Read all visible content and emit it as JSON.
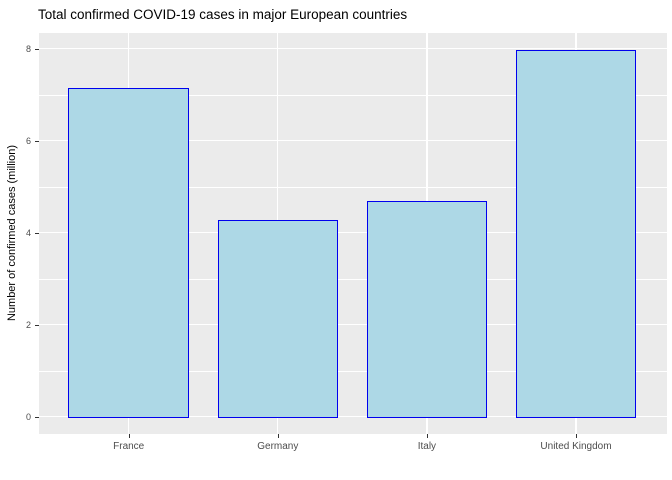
{
  "chart_data": {
    "type": "bar",
    "title": "Total confirmed COVID-19 cases in major European countries",
    "xlabel": "",
    "ylabel": "Number of confirmed cases (million)",
    "categories": [
      "France",
      "Germany",
      "Italy",
      "United Kingdom"
    ],
    "values": [
      7.14,
      4.28,
      4.68,
      7.96
    ],
    "y_ticks": [
      0,
      2,
      4,
      6,
      8
    ],
    "y_minor_ticks": [
      1,
      3,
      5,
      7
    ],
    "ylim": [
      -0.4,
      8.35
    ],
    "grid": "white major+minor horizontal lines, white major vertical line at each category center",
    "legend": "none",
    "style": {
      "background": "#FFFFFF",
      "panel_bg": "#EBEBEB",
      "grid_major_color": "#FFFFFF",
      "grid_minor_color": "#FFFFFF",
      "bar_fill": "#ADD8E6",
      "bar_border": "#0000EE",
      "title_color": "#000000",
      "axis_title_color": "#000000",
      "tick_label_color": "#4D4D4D",
      "tick_mark_color": "#333333"
    }
  }
}
